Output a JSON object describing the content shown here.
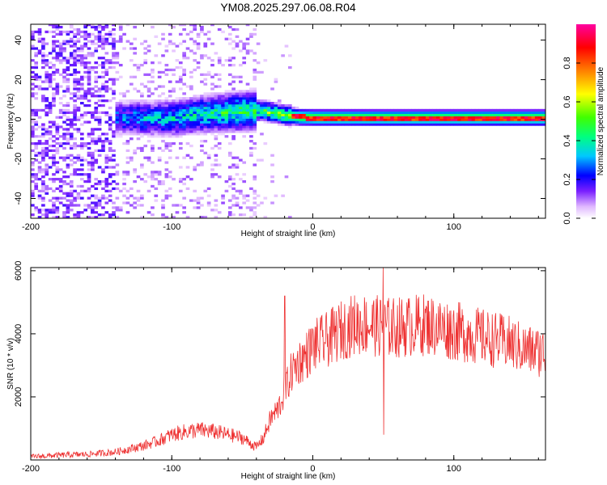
{
  "title": "YM08.2025.297.06.08.R04",
  "chart_data": [
    {
      "type": "heatmap",
      "xlabel": "Height of straight line (km)",
      "ylabel": "Frequency (Hz)",
      "xlim": [
        -200,
        165
      ],
      "ylim": [
        -50,
        48
      ],
      "xticks": [
        -200,
        -100,
        0,
        100
      ],
      "yticks": [
        -40,
        -20,
        0,
        20,
        40
      ],
      "colorbar": {
        "label": "Normalized spectral amplitude",
        "range": [
          0,
          1
        ],
        "ticks": [
          0.0,
          0.2,
          0.4,
          0.6,
          0.8
        ],
        "colormap": [
          "#ffffff",
          "#e0b8ff",
          "#7a1fff",
          "#0000ff",
          "#00c8ff",
          "#00ff80",
          "#40ff00",
          "#ffff00",
          "#ff8000",
          "#ff0000",
          "#ff00a0"
        ]
      },
      "ridge": {
        "description_x_km": [
          -140,
          -100,
          -80,
          -60,
          -40,
          -30,
          -20,
          -10,
          0,
          50,
          100,
          165
        ],
        "frequency_hz": [
          0,
          0,
          2,
          3,
          4,
          3,
          1.5,
          0.5,
          0.3,
          0.2,
          0.2,
          0.2
        ]
      }
    },
    {
      "type": "line",
      "xlabel": "Height of straight line (km)",
      "ylabel": "SNR (10 * v/v)",
      "xlim": [
        -200,
        165
      ],
      "ylim": [
        0,
        6100
      ],
      "xticks": [
        -200,
        -100,
        0,
        100
      ],
      "yticks": [
        2000,
        4000,
        6000
      ],
      "color": "#ee3333",
      "x": [
        -200,
        -180,
        -160,
        -140,
        -130,
        -120,
        -110,
        -100,
        -90,
        -80,
        -70,
        -60,
        -50,
        -40,
        -35,
        -30,
        -25,
        -22,
        -20,
        -18,
        -15,
        -10,
        -5,
        0,
        10,
        20,
        30,
        40,
        50,
        60,
        70,
        80,
        90,
        100,
        110,
        120,
        130,
        140,
        150,
        165
      ],
      "values": [
        100,
        150,
        180,
        250,
        350,
        450,
        600,
        800,
        900,
        950,
        900,
        800,
        700,
        400,
        700,
        1300,
        1600,
        1900,
        2200,
        2400,
        2800,
        3100,
        3300,
        3600,
        3800,
        4100,
        4300,
        4300,
        4200,
        4200,
        4250,
        4300,
        4200,
        4100,
        4000,
        3900,
        3800,
        3700,
        3500,
        3400
      ]
    }
  ]
}
